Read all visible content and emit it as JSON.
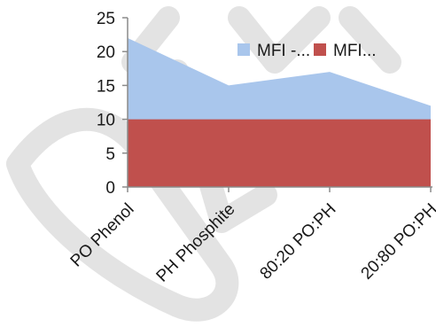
{
  "chart_data": {
    "type": "area",
    "categories": [
      "PO Phenol",
      "PH Phosphite",
      "80:20 PO:PH",
      "20:80 PO:PH"
    ],
    "series": [
      {
        "name": "MFI -...",
        "values": [
          22,
          15,
          17,
          12
        ],
        "color": "#a9c6ec"
      },
      {
        "name": "MFI...",
        "values": [
          10,
          10,
          10,
          10
        ],
        "color": "#c0504d"
      }
    ],
    "ylim": [
      0,
      25
    ],
    "yticks": [
      "0",
      "5",
      "10",
      "15",
      "20",
      "25"
    ],
    "grid": false,
    "legend_position": "top-right",
    "title": "",
    "xlabel": "",
    "ylabel": ""
  }
}
